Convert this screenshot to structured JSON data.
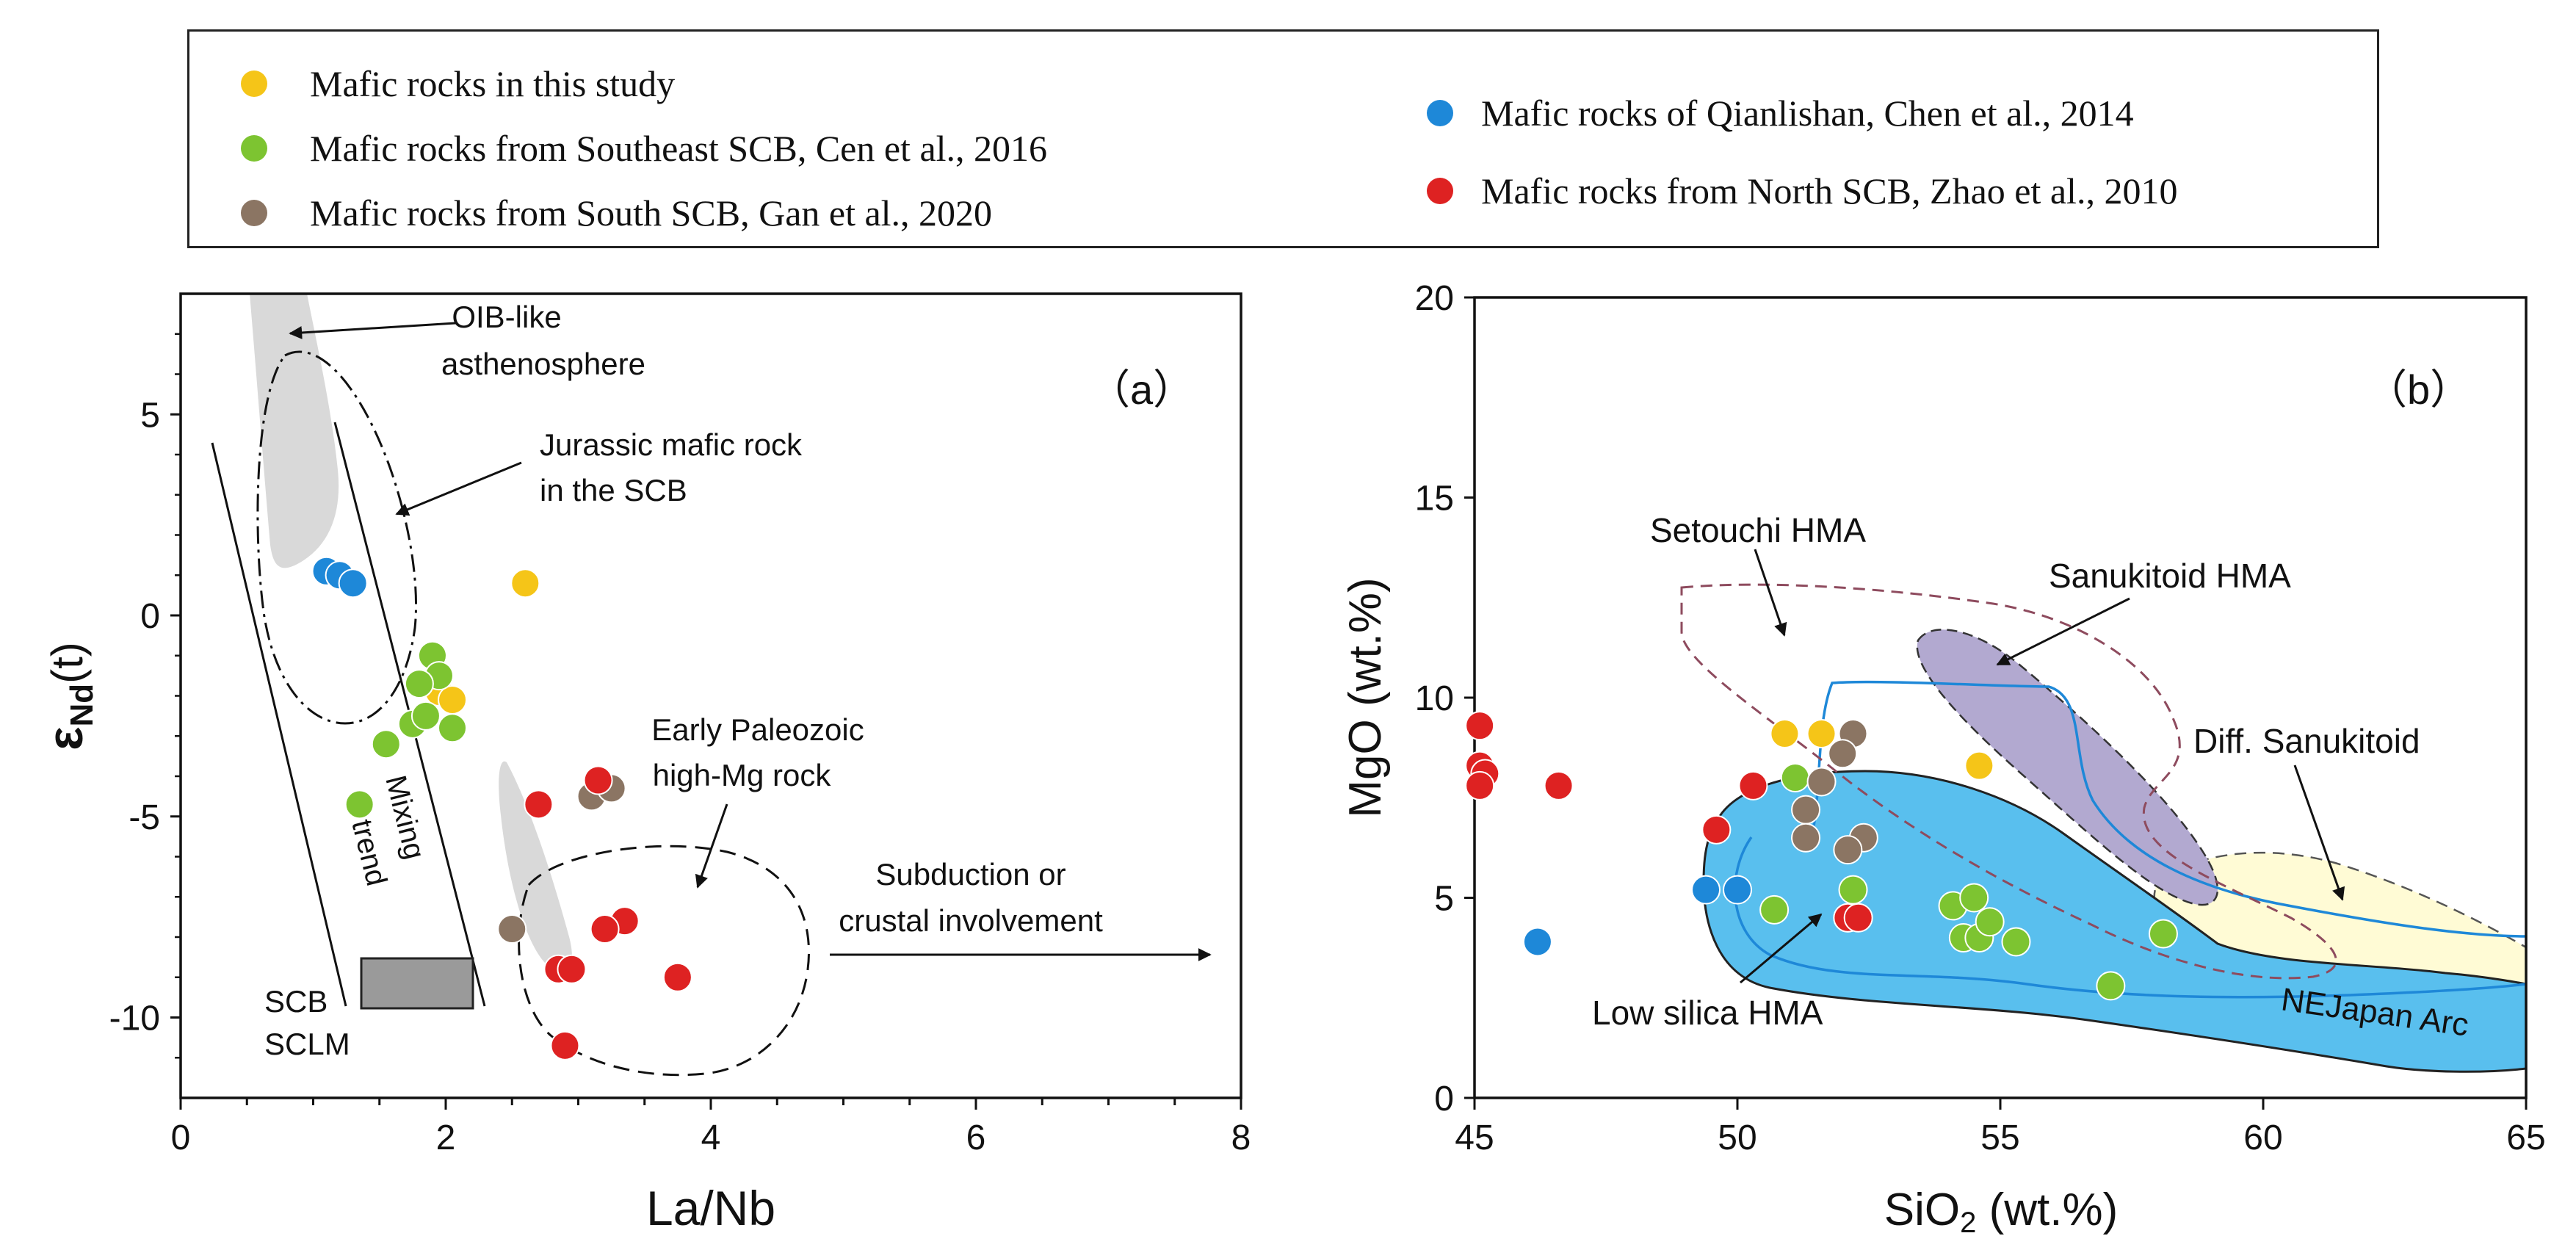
{
  "legend": {
    "items": [
      {
        "label": "Mafic rocks in this study",
        "color": "#F5C518"
      },
      {
        "label": "Mafic rocks from Southeast SCB, Cen et al., 2016",
        "color": "#7DC431"
      },
      {
        "label": "Mafic rocks from South SCB, Gan et al., 2020",
        "color": "#8B7563"
      },
      {
        "label": "Mafic rocks of Qianlishan, Chen et al., 2014",
        "color": "#1E88D8"
      },
      {
        "label": "Mafic rocks from North SCB, Zhao et al., 2010",
        "color": "#DE2222"
      }
    ]
  },
  "chart_data": [
    {
      "id": "a",
      "type": "scatter",
      "panel_label": "（a）",
      "xlabel": "La/Nb",
      "ylabel": "εNd(t)",
      "ylabel_main": "ε",
      "ylabel_sub": "Nd",
      "ylabel_tail": "(t)",
      "xlim": [
        0,
        8
      ],
      "ylim": [
        -12,
        8
      ],
      "xticks": [
        0,
        2,
        4,
        6,
        8
      ],
      "xtick_labels": [
        "0",
        "2",
        "4",
        "6",
        "8"
      ],
      "yticks": [
        5,
        0,
        -5,
        -10
      ],
      "ytick_labels": [
        "5",
        "0",
        "-5",
        "-10"
      ],
      "annotations": {
        "oib_1": "OIB-like",
        "oib_2": "asthenosphere",
        "jur_1": "Jurassic mafic rock",
        "jur_2": "in the SCB",
        "ep_1": "Early Paleozoic",
        "ep_2": "high-Mg rock",
        "sub_1": "Subduction or",
        "sub_2": "crustal involvement",
        "mix_1": "Mixing",
        "mix_2": "trend",
        "scb": "SCB",
        "sclm": "SCLM"
      },
      "series": [
        {
          "name": "Mafic rocks in this study",
          "color": "#F5C518",
          "points": [
            [
              2.6,
              0.8
            ],
            [
              1.95,
              -1.9
            ],
            [
              2.05,
              -2.1
            ]
          ]
        },
        {
          "name": "Mafic rocks from Southeast SCB, Cen et al., 2016",
          "color": "#7DC431",
          "points": [
            [
              1.9,
              -1.0
            ],
            [
              1.95,
              -1.5
            ],
            [
              1.8,
              -1.7
            ],
            [
              1.75,
              -2.7
            ],
            [
              1.85,
              -2.5
            ],
            [
              2.05,
              -2.8
            ],
            [
              1.55,
              -3.2
            ],
            [
              1.35,
              -4.7
            ]
          ]
        },
        {
          "name": "Mafic rocks from South SCB, Gan et al., 2020",
          "color": "#8B7563",
          "points": [
            [
              3.1,
              -4.5
            ],
            [
              3.25,
              -4.3
            ],
            [
              2.5,
              -7.8
            ]
          ]
        },
        {
          "name": "Mafic rocks of Qianlishan, Chen et al., 2014",
          "color": "#1E88D8",
          "points": [
            [
              1.1,
              1.1
            ],
            [
              1.2,
              1.0
            ],
            [
              1.3,
              0.8
            ]
          ]
        },
        {
          "name": "Mafic rocks from North SCB, Zhao et al., 2010",
          "color": "#DE2222",
          "points": [
            [
              3.15,
              -4.1
            ],
            [
              2.7,
              -4.7
            ],
            [
              3.35,
              -7.6
            ],
            [
              3.2,
              -7.8
            ],
            [
              2.85,
              -8.8
            ],
            [
              2.95,
              -8.8
            ],
            [
              3.75,
              -9.0
            ],
            [
              2.9,
              -10.7
            ]
          ]
        }
      ]
    },
    {
      "id": "b",
      "type": "scatter",
      "panel_label": "（b）",
      "xlabel": "SiO2 (wt.%)",
      "xlabel_main": "SiO",
      "xlabel_sub": "2",
      "xlabel_tail": " (wt.%)",
      "ylabel": "MgO (wt.%)",
      "xlim": [
        45,
        65
      ],
      "ylim": [
        0,
        20
      ],
      "xticks": [
        45,
        50,
        55,
        60,
        65
      ],
      "xtick_labels": [
        "45",
        "50",
        "55",
        "60",
        "65"
      ],
      "yticks": [
        0,
        5,
        10,
        15,
        20
      ],
      "ytick_labels": [
        "0",
        "5",
        "10",
        "15",
        "20"
      ],
      "annotations": {
        "setouchi": "Setouchi HMA",
        "sanukitoid": "Sanukitoid HMA",
        "diff": "Diff. Sanukitoid",
        "low_silica": "Low silica HMA",
        "ne_japan": "NEJapan Arc"
      },
      "series": [
        {
          "name": "Mafic rocks in this study",
          "color": "#F5C518",
          "points": [
            [
              50.9,
              9.1
            ],
            [
              51.6,
              9.1
            ],
            [
              54.6,
              8.3
            ]
          ]
        },
        {
          "name": "Mafic rocks from Southeast SCB, Cen et al., 2016",
          "color": "#7DC431",
          "points": [
            [
              51.1,
              8.0
            ],
            [
              52.2,
              5.2
            ],
            [
              54.1,
              4.8
            ],
            [
              54.5,
              5.0
            ],
            [
              54.3,
              4.0
            ],
            [
              54.6,
              4.0
            ],
            [
              54.8,
              4.4
            ],
            [
              55.3,
              3.9
            ],
            [
              50.7,
              4.7
            ],
            [
              52.1,
              4.5
            ],
            [
              57.1,
              2.8
            ],
            [
              58.1,
              4.1
            ]
          ]
        },
        {
          "name": "Mafic rocks from South SCB, Gan et al., 2020",
          "color": "#8B7563",
          "points": [
            [
              52.2,
              9.1
            ],
            [
              52.0,
              8.6
            ],
            [
              51.6,
              7.9
            ],
            [
              51.3,
              7.2
            ],
            [
              51.3,
              6.5
            ],
            [
              52.4,
              6.5
            ],
            [
              52.1,
              6.2
            ]
          ]
        },
        {
          "name": "Mafic rocks of Qianlishan, Chen et al., 2014",
          "color": "#1E88D8",
          "points": [
            [
              49.4,
              5.2
            ],
            [
              50.0,
              5.2
            ],
            [
              46.2,
              3.9
            ]
          ]
        },
        {
          "name": "Mafic rocks from North SCB, Zhao et al., 2010",
          "color": "#DE2222",
          "points": [
            [
              45.1,
              9.3
            ],
            [
              45.1,
              8.3
            ],
            [
              45.2,
              8.1
            ],
            [
              45.1,
              7.8
            ],
            [
              46.6,
              7.8
            ],
            [
              50.3,
              7.8
            ],
            [
              49.6,
              6.7
            ],
            [
              52.1,
              4.5
            ],
            [
              52.3,
              4.5
            ]
          ]
        }
      ]
    }
  ]
}
